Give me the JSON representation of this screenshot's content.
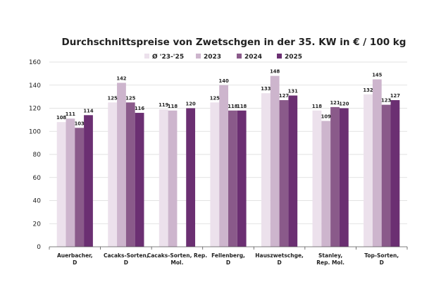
{
  "chart_data": {
    "type": "bar",
    "title": "Durchschnittspreise von Zwetschgen in der 35. KW in € / 100 kg",
    "xlabel": "",
    "ylabel": "",
    "ylim": [
      0,
      160
    ],
    "yticks": [
      0,
      20,
      40,
      60,
      80,
      100,
      120,
      140,
      160
    ],
    "grid": true,
    "legend_position": "top",
    "categories": [
      [
        "Auerbacher,",
        "D"
      ],
      [
        "Cacaks-Sorten,",
        "D"
      ],
      [
        "Cacaks-Sorten, Rep.",
        "Mol."
      ],
      [
        "Fellenberg,",
        "D"
      ],
      [
        "Hauszwetschge,",
        "D"
      ],
      [
        "Stanley,",
        "Rep. Mol."
      ],
      [
        "Top-Sorten,",
        "D"
      ]
    ],
    "series": [
      {
        "name": "Ø '23-'25",
        "color": "#ece1ec",
        "values": [
          108,
          125,
          119,
          125,
          133,
          118,
          132
        ]
      },
      {
        "name": "2023",
        "color": "#cdb5cd",
        "values": [
          111,
          142,
          118,
          140,
          148,
          109,
          145
        ]
      },
      {
        "name": "2024",
        "color": "#8a5a8a",
        "values": [
          103,
          125,
          null,
          118,
          127,
          121,
          123
        ]
      },
      {
        "name": "2025",
        "color": "#6b2f72",
        "values": [
          114,
          116,
          120,
          118,
          131,
          120,
          127
        ]
      }
    ]
  }
}
